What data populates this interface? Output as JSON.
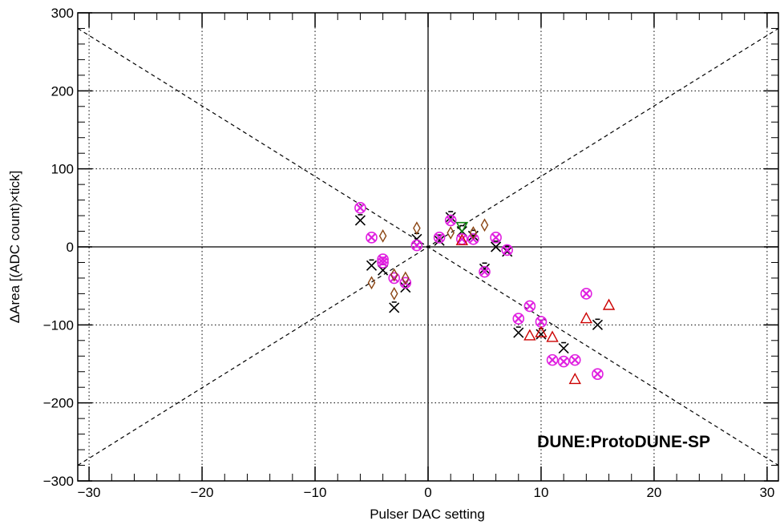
{
  "chart_data": {
    "type": "scatter",
    "xlabel": "Pulser DAC setting",
    "ylabel": "ΔArea [(ADC count)×tick]",
    "xlim": [
      -31,
      31
    ],
    "ylim": [
      -300,
      300
    ],
    "xticks": [
      -30,
      -20,
      -10,
      0,
      10,
      20,
      30
    ],
    "yticks": [
      -300,
      -200,
      -100,
      0,
      100,
      200,
      300
    ],
    "xtick_labels": [
      "−30",
      "−20",
      "−10",
      "0",
      "10",
      "20",
      "30"
    ],
    "ytick_labels": [
      "−300",
      "−200",
      "−100",
      "0",
      "100",
      "200",
      "300"
    ],
    "grid": true,
    "annotation": "DUNE:ProtoDUNE-SP",
    "guide_lines": [
      {
        "from": [
          -31,
          -280
        ],
        "to": [
          31,
          280
        ]
      },
      {
        "from": [
          -31,
          280
        ],
        "to": [
          31,
          -280
        ]
      }
    ],
    "series": [
      {
        "marker": "x",
        "color": "#000000",
        "points": [
          [
            -6,
            34
          ],
          [
            -5,
            -24
          ],
          [
            -4,
            -30
          ],
          [
            -3,
            -78
          ],
          [
            -2,
            -52
          ],
          [
            -1,
            10
          ],
          [
            1,
            8
          ],
          [
            2,
            38
          ],
          [
            3,
            20
          ],
          [
            4,
            14
          ],
          [
            5,
            -28
          ],
          [
            6,
            0
          ],
          [
            7,
            -6
          ],
          [
            8,
            -110
          ],
          [
            10,
            -112
          ],
          [
            12,
            -130
          ],
          [
            15,
            -100
          ]
        ]
      },
      {
        "marker": "circle-x",
        "color": "#e020e0",
        "points": [
          [
            -6,
            50
          ],
          [
            -5,
            12
          ],
          [
            -4,
            -16
          ],
          [
            -4,
            -20
          ],
          [
            -3,
            -40
          ],
          [
            -2,
            -46
          ],
          [
            -1,
            2
          ],
          [
            1,
            12
          ],
          [
            2,
            34
          ],
          [
            3,
            10
          ],
          [
            4,
            10
          ],
          [
            5,
            -32
          ],
          [
            6,
            12
          ],
          [
            7,
            -4
          ],
          [
            8,
            -92
          ],
          [
            9,
            -76
          ],
          [
            10,
            -96
          ],
          [
            11,
            -145
          ],
          [
            12,
            -147
          ],
          [
            13,
            -145
          ],
          [
            14,
            -60
          ],
          [
            15,
            -163
          ]
        ]
      },
      {
        "marker": "diamond",
        "color": "#8b4513",
        "points": [
          [
            -5,
            -46
          ],
          [
            -4,
            14
          ],
          [
            -3,
            -60
          ],
          [
            -3,
            -36
          ],
          [
            -2,
            -40
          ],
          [
            -1,
            24
          ],
          [
            2,
            18
          ],
          [
            4,
            18
          ],
          [
            5,
            28
          ]
        ]
      },
      {
        "marker": "triangle",
        "color": "#cc0000",
        "points": [
          [
            3,
            8
          ],
          [
            9,
            -114
          ],
          [
            10,
            -110
          ],
          [
            11,
            -116
          ],
          [
            13,
            -170
          ],
          [
            14,
            -92
          ],
          [
            16,
            -75
          ]
        ]
      },
      {
        "marker": "triangle-down",
        "color": "#118811",
        "points": [
          [
            3,
            26
          ]
        ]
      }
    ]
  }
}
